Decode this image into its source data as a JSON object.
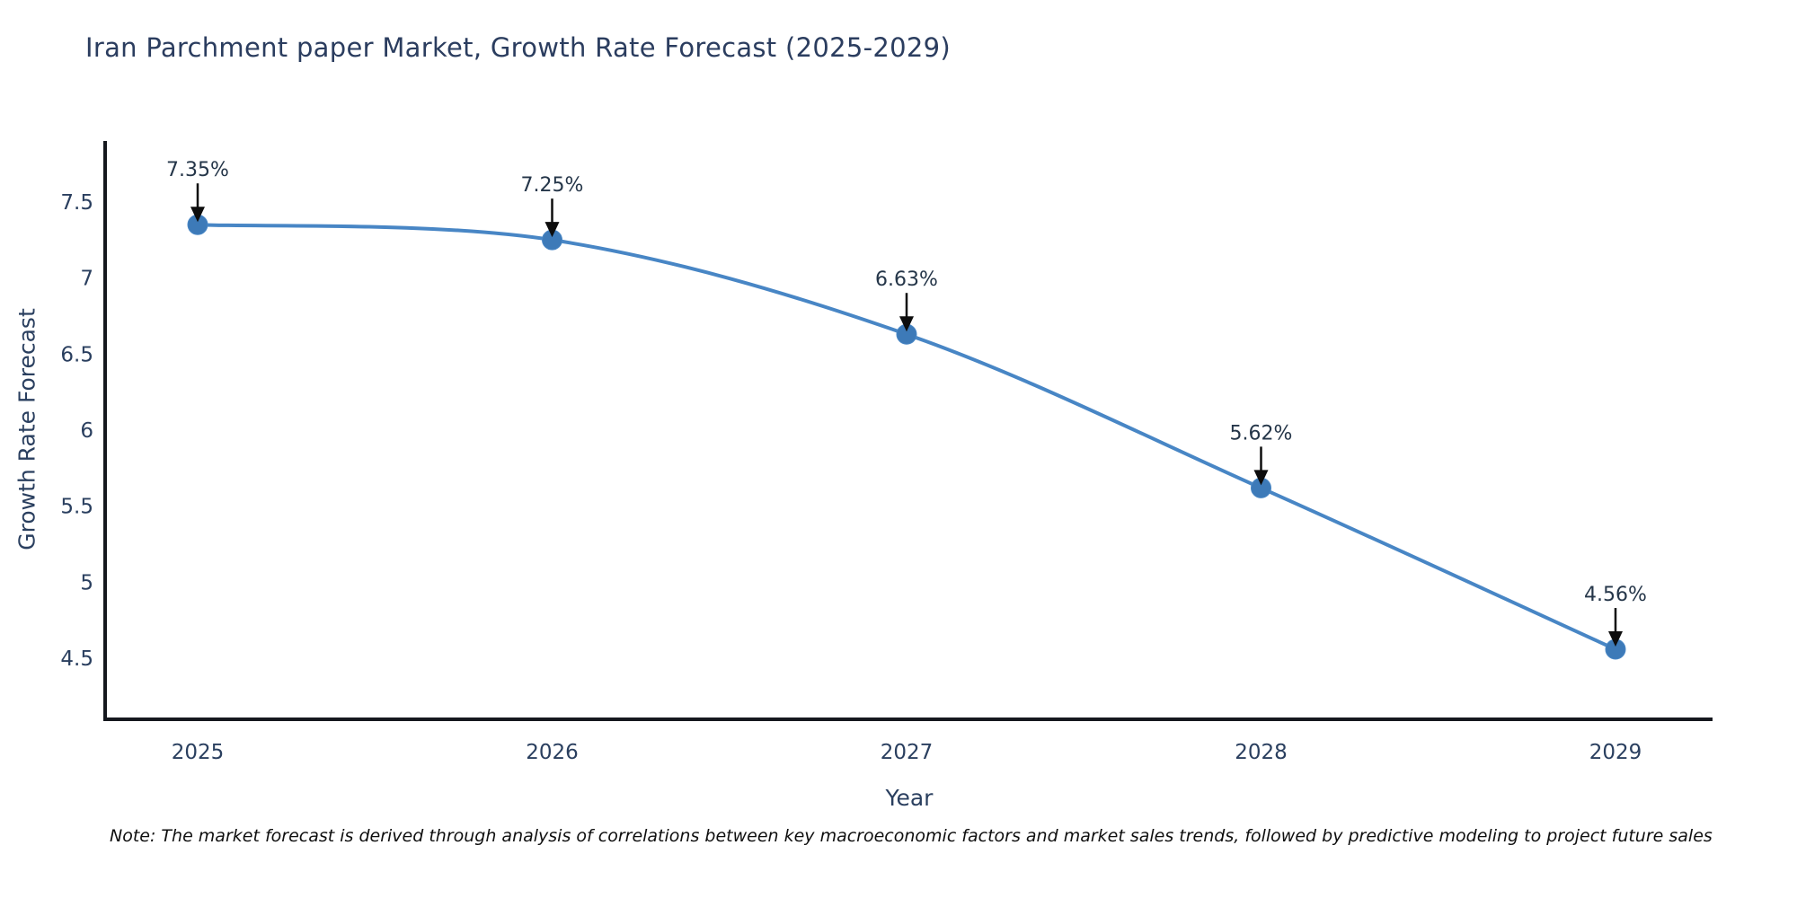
{
  "title": "Iran Parchment paper Market, Growth Rate Forecast (2025-2029)",
  "note": "Note: The market forecast is derived through analysis of correlations between key macroeconomic factors and market sales trends, followed by predictive modeling to project future sales",
  "chart_data": {
    "type": "line",
    "title": "Iran Parchment paper Market, Growth Rate Forecast (2025-2029)",
    "xlabel": "Year",
    "ylabel": "Growth Rate Forecast",
    "categories": [
      "2025",
      "2026",
      "2027",
      "2028",
      "2029"
    ],
    "series": [
      {
        "name": "Growth Rate Forecast",
        "values": [
          7.35,
          7.25,
          6.63,
          5.62,
          4.56
        ]
      }
    ],
    "point_labels": [
      "7.35%",
      "7.25%",
      "6.63%",
      "5.62%",
      "4.56%"
    ],
    "yticks": [
      4.5,
      5,
      5.5,
      6,
      6.5,
      7,
      7.5
    ],
    "ylim": [
      4.1,
      7.9
    ],
    "grid": false,
    "legend": "none",
    "line_shape": "spline",
    "colors": {
      "line": "#4886c5",
      "marker": "#3d7ab8",
      "axis": "#15181e",
      "tick_text": "#2a3f5f",
      "annotation_text": "#253649",
      "arrow": "#0d0d0d"
    }
  }
}
